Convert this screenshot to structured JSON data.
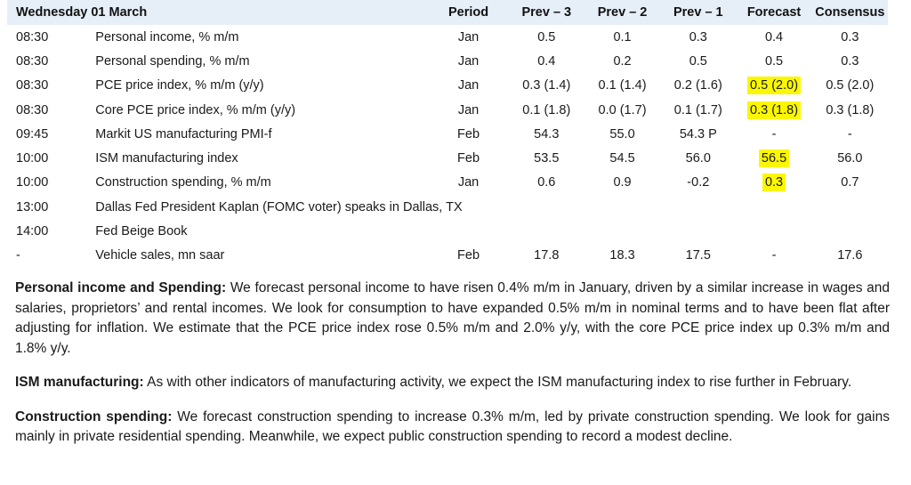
{
  "table": {
    "headers": {
      "date": "Wednesday 01 March",
      "period": "Period",
      "prev3": "Prev – 3",
      "prev2": "Prev – 2",
      "prev1": "Prev – 1",
      "forecast": "Forecast",
      "consensus": "Consensus"
    },
    "rows": [
      {
        "time": "08:30",
        "event": "Personal income, % m/m",
        "period": "Jan",
        "prev3": "0.5",
        "prev2": "0.1",
        "prev1": "0.3",
        "forecast": "0.4",
        "consensus": "0.3",
        "highlight": false
      },
      {
        "time": "08:30",
        "event": "Personal spending, % m/m",
        "period": "Jan",
        "prev3": "0.4",
        "prev2": "0.2",
        "prev1": "0.5",
        "forecast": "0.5",
        "consensus": "0.3",
        "highlight": false
      },
      {
        "time": "08:30",
        "event": "PCE price index, % m/m (y/y)",
        "period": "Jan",
        "prev3": "0.3 (1.4)",
        "prev2": "0.1 (1.4)",
        "prev1": "0.2 (1.6)",
        "forecast": "0.5 (2.0)",
        "consensus": "0.5 (2.0)",
        "highlight": true
      },
      {
        "time": "08:30",
        "event": "Core PCE price index, % m/m (y/y)",
        "period": "Jan",
        "prev3": "0.1 (1.8)",
        "prev2": "0.0 (1.7)",
        "prev1": "0.1 (1.7)",
        "forecast": "0.3 (1.8)",
        "consensus": "0.3 (1.8)",
        "highlight": true
      },
      {
        "time": "09:45",
        "event": "Markit US manufacturing PMI-f",
        "period": "Feb",
        "prev3": "54.3",
        "prev2": "55.0",
        "prev1": "54.3 P",
        "forecast": "-",
        "consensus": "-",
        "highlight": false
      },
      {
        "time": "10:00",
        "event": "ISM manufacturing index",
        "period": "Feb",
        "prev3": "53.5",
        "prev2": "54.5",
        "prev1": "56.0",
        "forecast": "56.5",
        "consensus": "56.0",
        "highlight": true
      },
      {
        "time": "10:00",
        "event": "Construction spending, % m/m",
        "period": "Jan",
        "prev3": "0.6",
        "prev2": "0.9",
        "prev1": "-0.2",
        "forecast": "0.3",
        "consensus": "0.7",
        "highlight": true
      },
      {
        "time": "13:00",
        "event": "Dallas Fed President Kaplan (FOMC voter) speaks in Dallas, TX",
        "period": "",
        "prev3": "",
        "prev2": "",
        "prev1": "",
        "forecast": "",
        "consensus": "",
        "highlight": false
      },
      {
        "time": "14:00",
        "event": "Fed Beige Book",
        "period": "",
        "prev3": "",
        "prev2": "",
        "prev1": "",
        "forecast": "",
        "consensus": "",
        "highlight": false
      },
      {
        "time": "-",
        "event": "Vehicle sales, mn saar",
        "period": "Feb",
        "prev3": "17.8",
        "prev2": "18.3",
        "prev1": "17.5",
        "forecast": "-",
        "consensus": "17.6",
        "highlight": false
      }
    ]
  },
  "paragraphs": [
    {
      "heading": "Personal income and Spending:",
      "text": " We forecast personal income to have risen 0.4% m/m in January, driven by a similar increase in wages and salaries, proprietors’ and rental incomes. We look for consumption to have expanded 0.5% m/m in nominal terms and to have been flat after adjusting for inflation. We estimate that the PCE price index rose 0.5% m/m and 2.0% y/y, with the core PCE price index up 0.3% m/m and 1.8% y/y."
    },
    {
      "heading": "ISM manufacturing:",
      "text": " As with other indicators of manufacturing activity, we expect the ISM manufacturing index to rise further in February."
    },
    {
      "heading": "Construction spending:",
      "text": " We forecast construction spending to increase 0.3% m/m, led by private construction spending. We look for gains mainly in private residential spending. Meanwhile, we expect public construction spending to record a modest decline."
    }
  ]
}
